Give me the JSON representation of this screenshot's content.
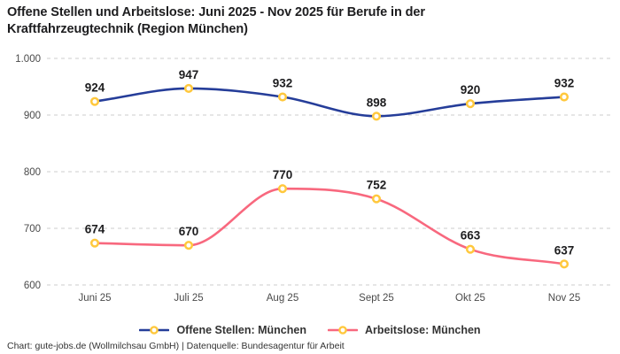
{
  "header": {
    "title_lines": [
      "Offene Stellen und Arbeitslose: Juni 2025 - Nov 2025 für Berufe in der",
      "Kraftfahrzeugtechnik (Region München)"
    ]
  },
  "chart_data": {
    "type": "line",
    "title": "Offene Stellen und Arbeitslose: Juni 2025 - Nov 2025 für Berufe in der Kraftfahrzeugtechnik (Region München)",
    "categories": [
      "Juni 25",
      "Juli 25",
      "Aug 25",
      "Sept 25",
      "Okt 25",
      "Nov 25"
    ],
    "series": [
      {
        "name": "Offene Stellen: München",
        "values": [
          924,
          947,
          932,
          898,
          920,
          932
        ],
        "color": "#253d99"
      },
      {
        "name": "Arbeitslose: München",
        "values": [
          674,
          670,
          770,
          752,
          663,
          637
        ],
        "color": "#f8687e"
      }
    ],
    "y_ticks": [
      {
        "value": 1000,
        "label": "1.000"
      },
      {
        "value": 900,
        "label": "900"
      },
      {
        "value": 800,
        "label": "800"
      },
      {
        "value": 700,
        "label": "700"
      },
      {
        "value": 600,
        "label": "600"
      }
    ],
    "ylim": [
      600,
      1000
    ],
    "xlabel": "",
    "ylabel": "",
    "grid": "horizontal-dashed",
    "legend_position": "bottom",
    "line_style": "smooth",
    "marker": {
      "shape": "circle",
      "stroke": "#ffc83d",
      "fill": "#ffffff"
    },
    "colors": {
      "grid": "#cccccc",
      "tick_label": "#4a4a4a",
      "value_label": "#1d1d1f"
    }
  },
  "legend": {
    "items": [
      {
        "label": "Offene Stellen: München",
        "color": "#253d99"
      },
      {
        "label": "Arbeitslose: München",
        "color": "#f8687e"
      }
    ]
  },
  "footer": {
    "credit": "Chart: gute-jobs.de (Wollmilchsau GmbH) | Datenquelle: Bundesagentur für Arbeit"
  }
}
